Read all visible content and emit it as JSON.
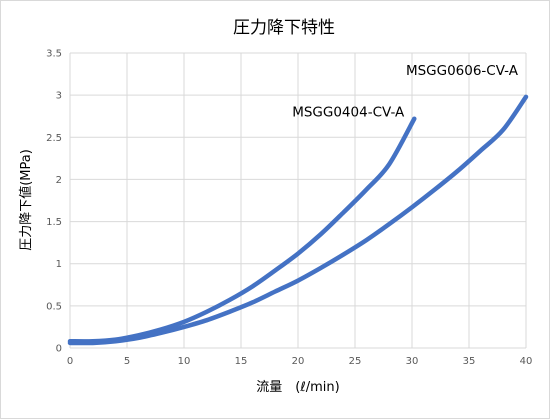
{
  "chart_data": {
    "type": "line",
    "title": "圧力降下特性",
    "xlabel": "流量　(ℓ/min)",
    "ylabel": "圧力降下値(MPa)",
    "xlim": [
      0,
      40
    ],
    "ylim": [
      0,
      3.5
    ],
    "x_ticks": [
      "0",
      "5",
      "10",
      "15",
      "20",
      "25",
      "30",
      "35",
      "40"
    ],
    "y_ticks": [
      "0",
      "0.5",
      "1",
      "1.5",
      "2",
      "2.5",
      "3",
      "3.5"
    ],
    "grid": "vertical and horizontal",
    "series_color": "#4472C4",
    "series": [
      {
        "name": "MSGG0404-CV-A",
        "x": [
          0,
          2,
          4,
          6,
          8,
          10,
          12,
          14,
          16,
          18,
          20,
          22,
          24,
          26,
          28,
          30.2
        ],
        "y": [
          0.08,
          0.08,
          0.1,
          0.15,
          0.22,
          0.31,
          0.43,
          0.57,
          0.73,
          0.92,
          1.12,
          1.35,
          1.61,
          1.88,
          2.18,
          2.72
        ]
      },
      {
        "name": "MSGG0606-CV-A",
        "x": [
          0,
          2,
          4,
          6,
          8,
          10,
          12,
          14,
          16,
          18,
          20,
          22,
          24,
          26,
          28,
          30,
          32,
          34,
          36,
          38,
          40
        ],
        "y": [
          0.06,
          0.06,
          0.08,
          0.12,
          0.18,
          0.25,
          0.33,
          0.43,
          0.54,
          0.67,
          0.8,
          0.95,
          1.11,
          1.28,
          1.47,
          1.67,
          1.88,
          2.1,
          2.34,
          2.59,
          2.98
        ]
      }
    ]
  }
}
